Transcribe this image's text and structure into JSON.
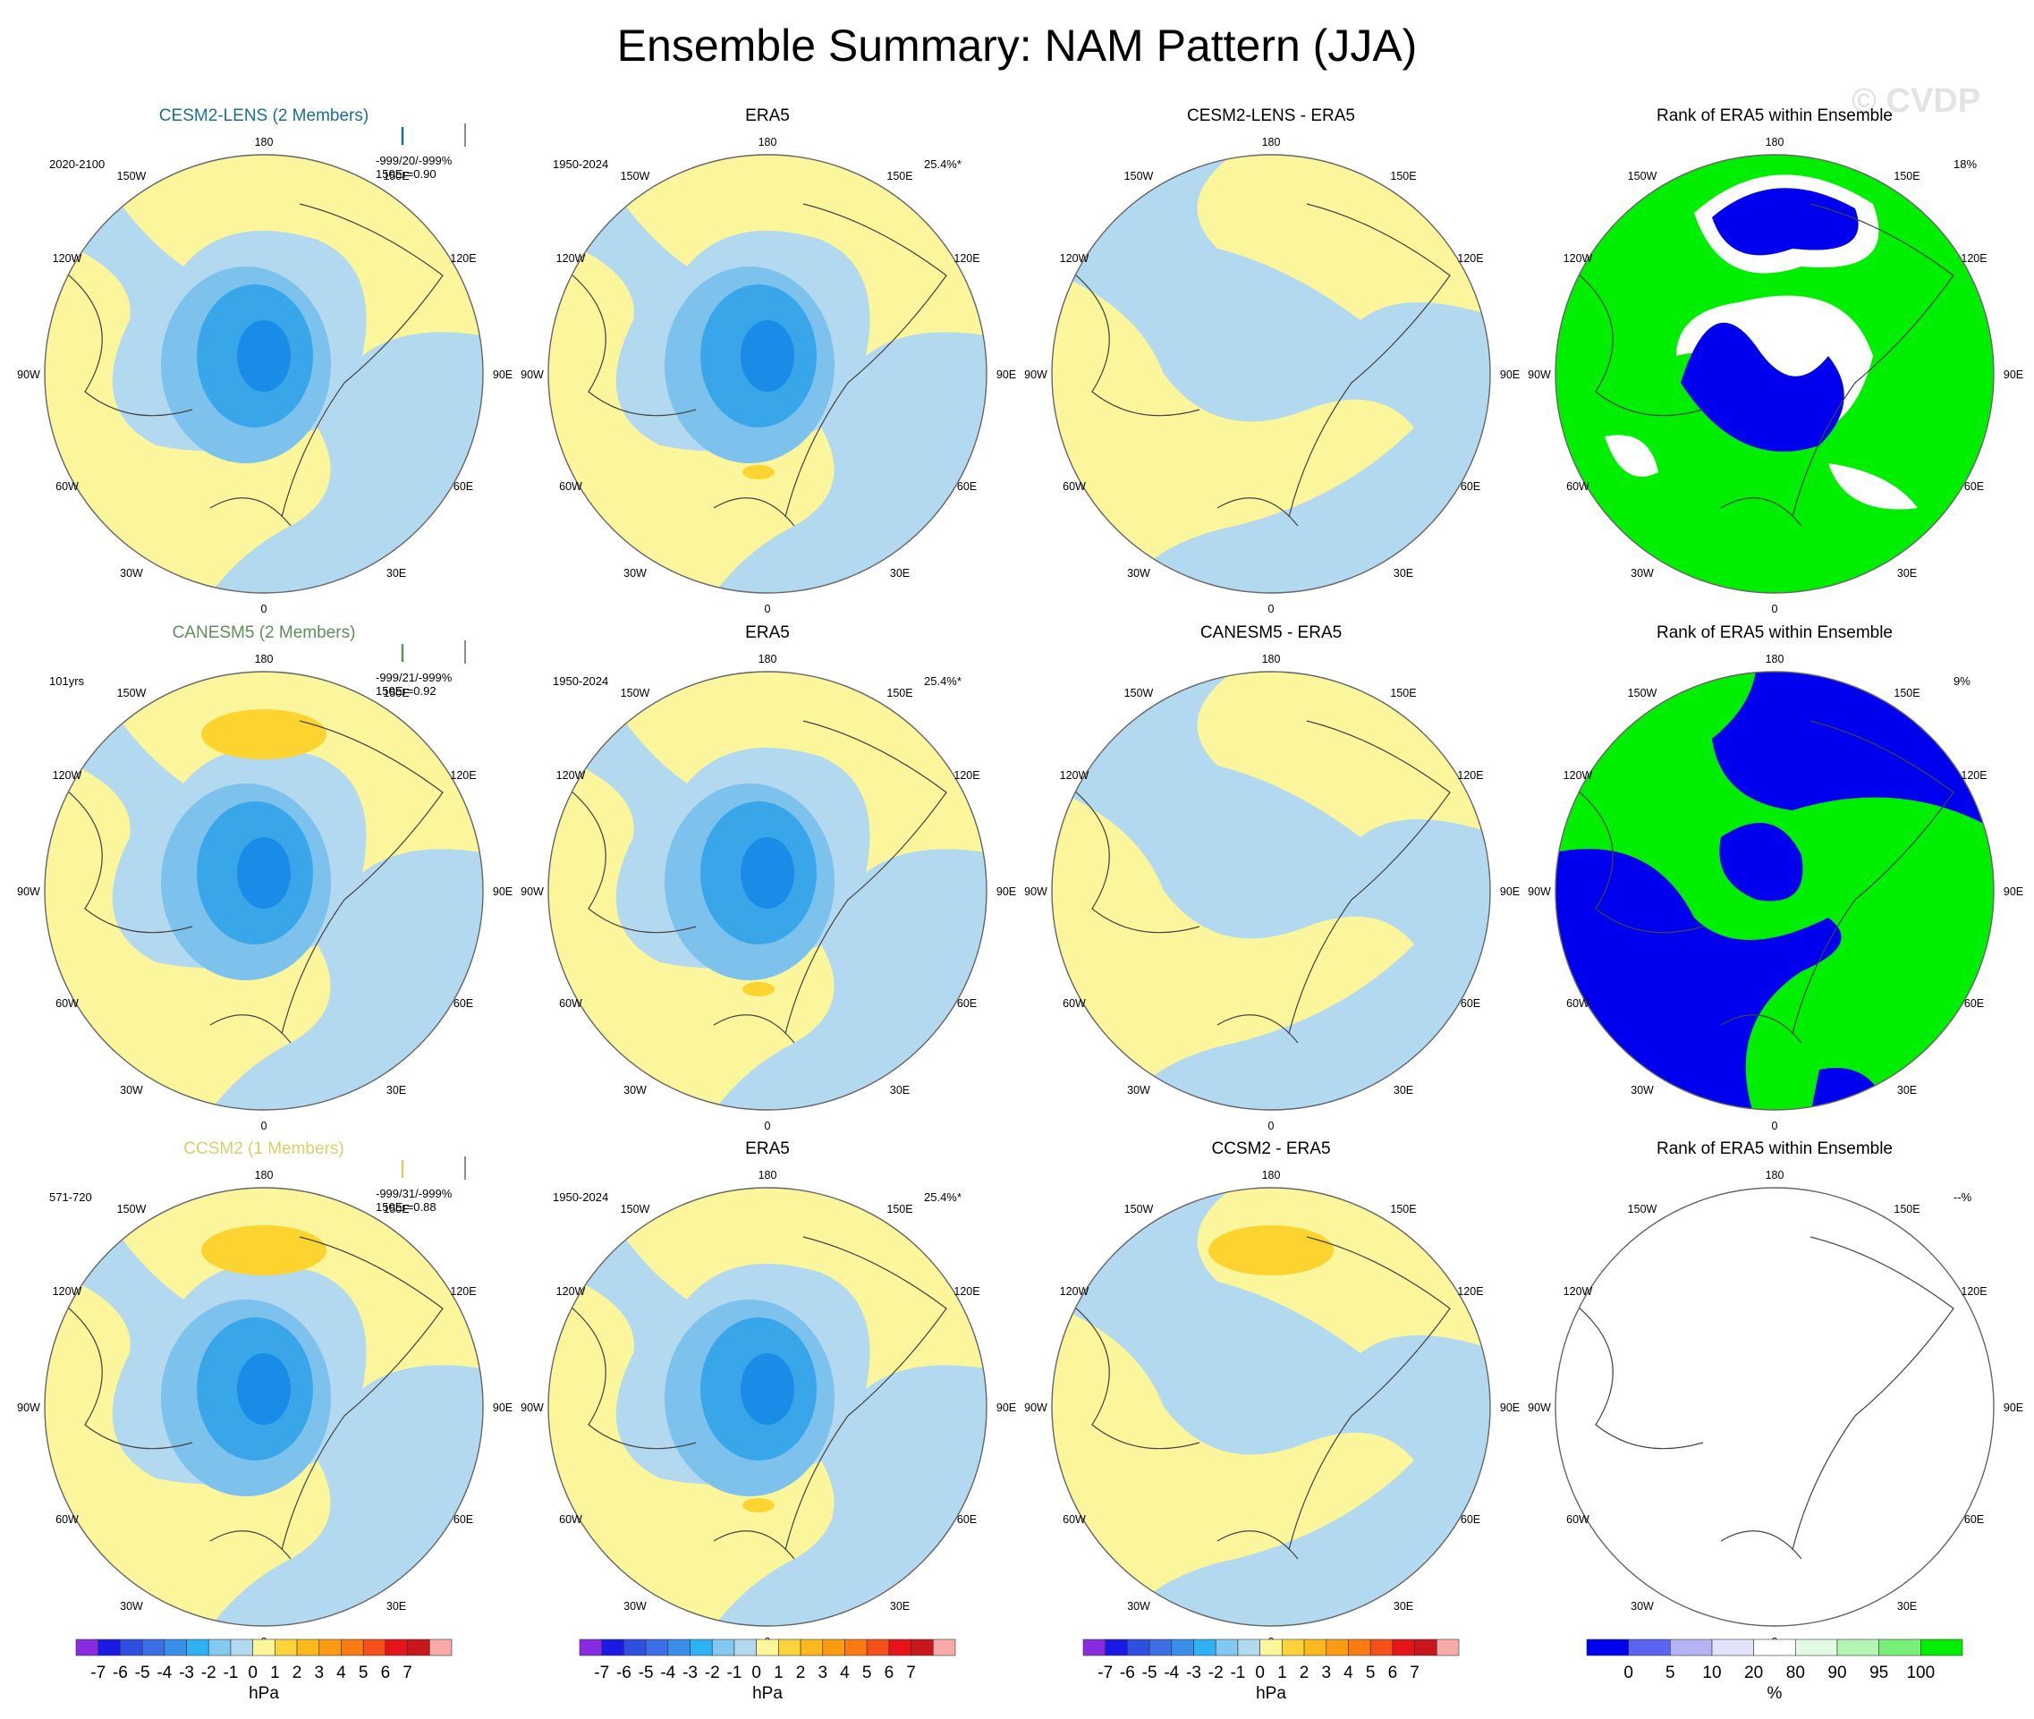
{
  "title": "Ensemble Summary: NAM Pattern (JJA)",
  "watermark": "© CVDP",
  "lon_labels": {
    "180": "180",
    "150W": "150W",
    "150E": "150E",
    "120W": "120W",
    "120E": "120E",
    "90W": "90W",
    "90E": "90E",
    "60W": "60W",
    "60E": "60E",
    "30W": "30W",
    "30E": "30E",
    "0": "0"
  },
  "colors": {
    "light_yellow": "#fbf59b",
    "light_blue": "#b2d9ef",
    "mid_blue": "#7cc2ec",
    "blue": "#3aa6ea",
    "deep_blue": "#1a8be6",
    "orange_yellow": "#fcd32f",
    "rank_green": "#00ee00",
    "rank_blue": "#0000ee",
    "cesm_title": "#1a6e96",
    "canesm_title": "#5b8f5b",
    "ccsm_title": "#d8cf6a"
  },
  "rows": [
    {
      "model": {
        "title": "CESM2-LENS (2 Members)",
        "years": "2020-2100",
        "stat1": "-999/20/-999%",
        "stat2": "150Er=0.90"
      },
      "era5": {
        "title": "ERA5",
        "years": "1950-2024",
        "pct": "25.4%*"
      },
      "diff": {
        "title": "CESM2-LENS - ERA5"
      },
      "rank": {
        "title": "Rank of ERA5 within Ensemble",
        "pct": "18%"
      }
    },
    {
      "model": {
        "title": "CANESM5 (2 Members)",
        "years": "101yrs",
        "stat1": "-999/21/-999%",
        "stat2": "150Er=0.92"
      },
      "era5": {
        "title": "ERA5",
        "years": "1950-2024",
        "pct": "25.4%*"
      },
      "diff": {
        "title": "CANESM5 - ERA5"
      },
      "rank": {
        "title": "Rank of ERA5 within Ensemble",
        "pct": "9%"
      }
    },
    {
      "model": {
        "title": "CCSM2 (1 Members)",
        "years": "571-720",
        "stat1": "-999/31/-999%",
        "stat2": "150Er=0.88"
      },
      "era5": {
        "title": "ERA5",
        "years": "1950-2024",
        "pct": "25.4%*"
      },
      "diff": {
        "title": "CCSM2 - ERA5"
      },
      "rank": {
        "title": "Rank of ERA5 within Ensemble",
        "pct": "--%"
      }
    }
  ],
  "colorbar_hpa": {
    "colors": [
      "#8a2be2",
      "#1a1ae6",
      "#2f4fe0",
      "#3c6ee6",
      "#3a8fe8",
      "#2fb2f2",
      "#82c8f0",
      "#b2d9ef",
      "#fbf59b",
      "#fcd33a",
      "#fcb81d",
      "#fc9a12",
      "#fb7a12",
      "#f5501a",
      "#e6141a",
      "#c8161c",
      "#f7aaa7"
    ],
    "labels": [
      "-7",
      "-6",
      "-5",
      "-4",
      "-3",
      "-2",
      "-1",
      "0",
      "1",
      "2",
      "3",
      "4",
      "5",
      "6",
      "7"
    ],
    "unit": "hPa"
  },
  "colorbar_rank": {
    "colors": [
      "#0000ee",
      "#5a64f0",
      "#b4b4f5",
      "#e2e2fa",
      "#ffffff",
      "#e2fae2",
      "#b4f5b4",
      "#78f078",
      "#00ee00"
    ],
    "labels": [
      "0",
      "5",
      "10",
      "20",
      "80",
      "90",
      "95",
      "100"
    ],
    "unit": "%"
  }
}
